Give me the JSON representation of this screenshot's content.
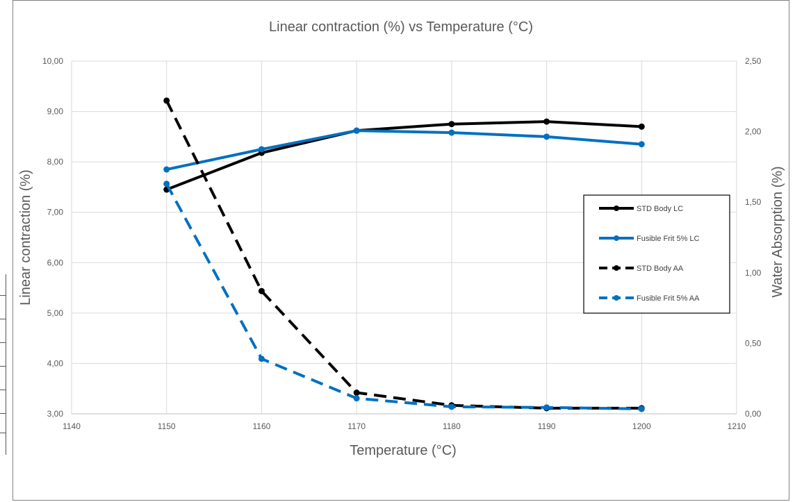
{
  "chart_data": {
    "type": "line",
    "title": "Linear contraction (%) vs Temperature (°C)",
    "xlabel": "Temperature (°C)",
    "ylabel": "Linear contraction (%)",
    "y2label": "Water Absorption (%)",
    "xlim": [
      1140,
      1210
    ],
    "ylim": [
      3,
      10
    ],
    "y2lim": [
      0,
      2.5
    ],
    "x_ticks": [
      "1140",
      "1150",
      "1160",
      "1170",
      "1180",
      "1190",
      "1200",
      "1210"
    ],
    "y_ticks": [
      "3,00",
      "4,00",
      "5,00",
      "6,00",
      "7,00",
      "8,00",
      "9,00",
      "10,00"
    ],
    "y2_ticks": [
      "0,00",
      "0,50",
      "1,00",
      "1,50",
      "2,00",
      "2,50"
    ],
    "grid": true,
    "legend_position": "right",
    "x": [
      1150,
      1160,
      1170,
      1180,
      1190,
      1200
    ],
    "series": [
      {
        "name": "STD Body LC",
        "axis": "left",
        "style": "solid",
        "color": "#000000",
        "values": [
          7.45,
          8.18,
          8.62,
          8.75,
          8.8,
          8.7
        ]
      },
      {
        "name": "Fusible Frit 5% LC",
        "axis": "left",
        "style": "solid",
        "color": "#0070c0",
        "values": [
          7.85,
          8.25,
          8.62,
          8.58,
          8.5,
          8.35
        ]
      },
      {
        "name": "STD Body AA",
        "axis": "right",
        "style": "dashed",
        "color": "#000000",
        "values": [
          2.22,
          0.87,
          0.15,
          0.06,
          0.04,
          0.04
        ]
      },
      {
        "name": "Fusible Frit 5% AA",
        "axis": "right",
        "style": "dashed",
        "color": "#0070c0",
        "values": [
          1.63,
          0.39,
          0.11,
          0.05,
          0.045,
          0.035
        ]
      }
    ]
  }
}
